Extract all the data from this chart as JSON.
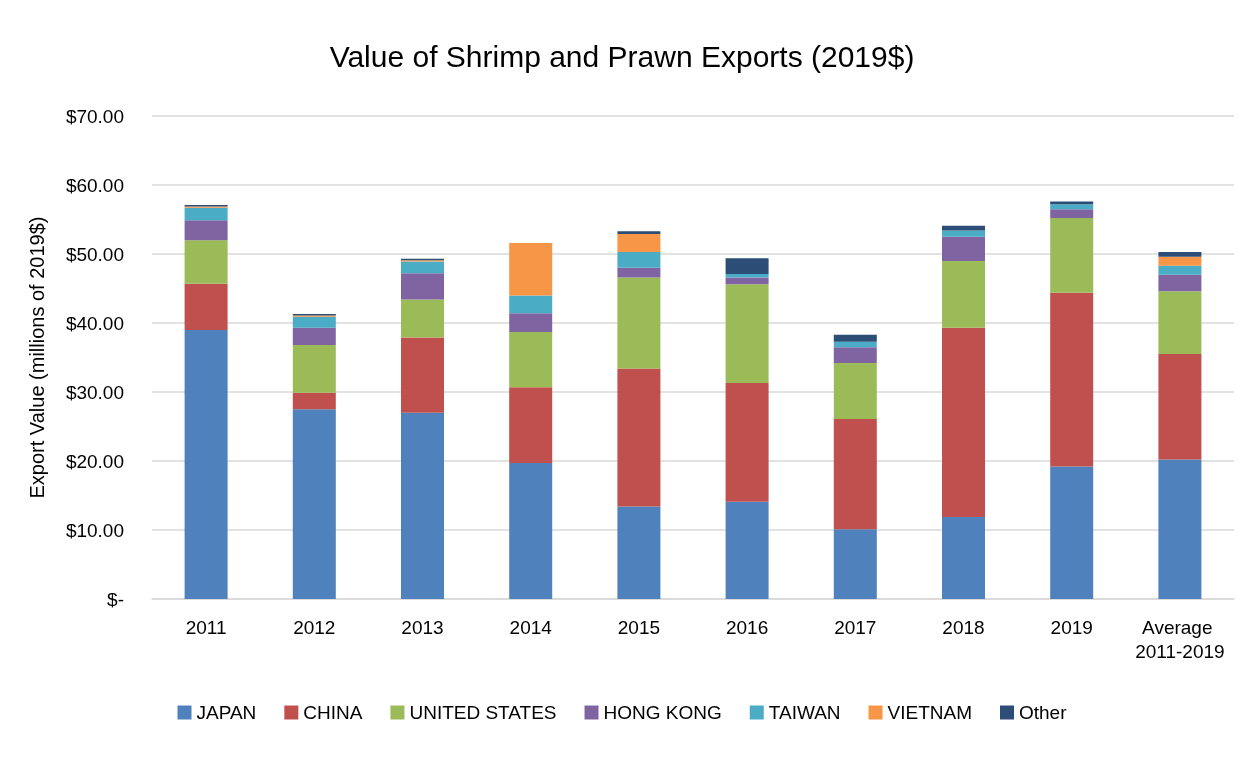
{
  "chart_data": {
    "type": "bar",
    "title": "Value of Shrimp and Prawn Exports (2019$)",
    "ylabel": "Export Value (millions of 2019$)",
    "categories": [
      "2011",
      "2012",
      "2013",
      "2014",
      "2015",
      "2016",
      "2017",
      "2018",
      "2019",
      "Average 2011-2019"
    ],
    "stacked": true,
    "series": [
      {
        "name": "JAPAN",
        "color": "#4f81bd",
        "values": [
          39.0,
          27.5,
          27.0,
          19.7,
          13.4,
          14.1,
          10.1,
          11.9,
          19.2,
          20.2
        ]
      },
      {
        "name": "CHINA",
        "color": "#c0504d",
        "values": [
          6.7,
          2.4,
          10.9,
          11.0,
          20.0,
          17.2,
          16.0,
          27.4,
          25.2,
          15.3
        ]
      },
      {
        "name": "UNITED STATES",
        "color": "#9bbb59",
        "values": [
          6.3,
          6.9,
          5.5,
          8.0,
          13.2,
          14.3,
          8.1,
          9.7,
          10.8,
          9.1
        ]
      },
      {
        "name": "HONG KONG",
        "color": "#8064a2",
        "values": [
          2.9,
          2.5,
          3.8,
          2.7,
          1.4,
          1.0,
          2.3,
          3.5,
          1.3,
          2.4
        ]
      },
      {
        "name": "TAIWAN",
        "color": "#4bacc6",
        "values": [
          1.8,
          1.6,
          1.7,
          2.6,
          2.3,
          0.5,
          0.8,
          0.9,
          0.7,
          1.3
        ]
      },
      {
        "name": "VIETNAM",
        "color": "#f79646",
        "values": [
          0.2,
          0.2,
          0.2,
          7.6,
          2.6,
          0,
          0,
          0,
          null,
          1.3
        ]
      },
      {
        "name": "Other",
        "color": "#2c4d75",
        "values": [
          0.2,
          0.2,
          0.2,
          0,
          0.4,
          2.3,
          1.0,
          0.7,
          0.4,
          0.7
        ]
      }
    ],
    "ylim": [
      0,
      70
    ],
    "yticks": [
      {
        "value": 0,
        "label": "$-"
      },
      {
        "value": 10,
        "label": "$10.00"
      },
      {
        "value": 20,
        "label": "$20.00"
      },
      {
        "value": 30,
        "label": "$30.00"
      },
      {
        "value": 40,
        "label": "$40.00"
      },
      {
        "value": 50,
        "label": "$50.00"
      },
      {
        "value": 60,
        "label": "$60.00"
      },
      {
        "value": 70,
        "label": "$70.00"
      }
    ],
    "grid": "y",
    "legend": "bottom"
  }
}
